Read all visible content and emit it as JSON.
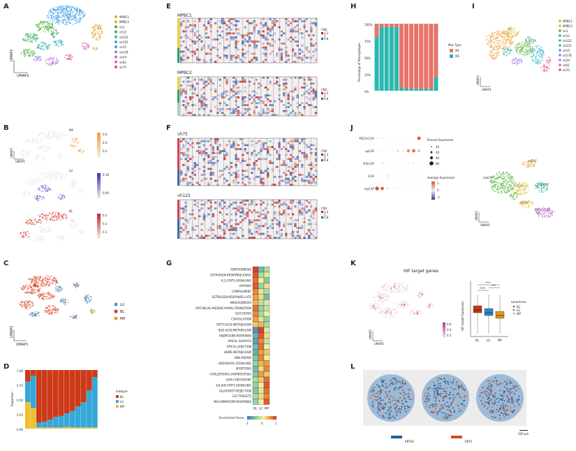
{
  "panels": {
    "A": "A",
    "B": "B",
    "C": "C",
    "D": "D",
    "E": "E",
    "F": "F",
    "G": "G",
    "H": "H",
    "I": "I",
    "J": "J",
    "K": "K",
    "L": "L"
  },
  "umap": {
    "x": "UMAP1",
    "y": "UMAP2"
  },
  "legend_A": [
    "MPBC1",
    "MPBC2",
    "vh1",
    "vh12",
    "vh122",
    "vh125",
    "vh15",
    "vh178",
    "vh24",
    "vh61",
    "vh75"
  ],
  "colors_A": [
    "#e8a23a",
    "#d4b43a",
    "#4cae2f",
    "#3fa867",
    "#3fb6a0",
    "#2fb0c8",
    "#3f9ee6",
    "#8c7de8",
    "#c06bd9",
    "#e05aa8",
    "#e04d6a"
  ],
  "panel_B": {
    "titles": [
      "MP",
      "LU",
      "BL"
    ],
    "scale_MP": [
      "0.6",
      "0.4",
      "0.2"
    ],
    "scale_LU": [
      "0.16",
      "0.04"
    ],
    "scale_BL": [
      "0.3",
      "0.2",
      "0.1"
    ]
  },
  "legend_C": [
    {
      "label": "LU",
      "color": "#3fa6d8"
    },
    {
      "label": "BL",
      "color": "#d8402a"
    },
    {
      "label": "MP",
      "color": "#f0a020"
    }
  ],
  "panel_D": {
    "ylabel": "Proportion",
    "legend_title": "Subtype",
    "legend": [
      "BL",
      "LU",
      "MP"
    ],
    "yticks": [
      "1.00",
      "0.75",
      "0.50",
      "0.25",
      "0.00"
    ]
  },
  "panel_E": {
    "titles": [
      "MPBC1",
      "MPBC2"
    ],
    "cnv_label": "CNV",
    "cnv_ticks": [
      "1.2",
      "1",
      "0.8"
    ]
  },
  "panel_F": {
    "titles": [
      "vh75",
      "vh125"
    ],
    "cnv_label": "CNV",
    "cnv_ticks": [
      "1.2",
      "1",
      "0.8"
    ]
  },
  "panel_G": {
    "pathways": [
      "ADIPOGENESIS",
      "ESTROGEN-RESPONSE-EARLY",
      "IL2-STAT5-SIGNALING",
      "HYPOXIA",
      "COMPLEMENT",
      "ESTROGEN-RESPONSE-LATE",
      "ANGIOGENESIS",
      "EPITHELIAL-MESENCHYMAL-TRANSITION",
      "GLYCOLYSIS",
      "COAGULATION",
      "FATTY-ACID-METABOLISM",
      "BILE-ACID-METABOLISM",
      "ANDROGEN-RESPONSE",
      "APICAL-SURFACE",
      "APICAL-JUNCTION",
      "HEME-METABOLISM",
      "DNA-REPAIR",
      "HEDGEHOG-SIGNALING",
      "APOPTOSIS",
      "CHOLESTEROL-HOMEOSTASIS",
      "G2M-CHECKPOINT",
      "IL6-JAK-STAT3-SIGNALING",
      "ALLOGRAFT-REJECTION",
      "E2F-TARGETS",
      "INFLAMMATORY-RESPONSE"
    ],
    "columns": [
      "BL",
      "LU",
      "MP"
    ],
    "scale_title": "Enrichment Score",
    "scale_ticks": [
      "-1",
      "0",
      "1"
    ]
  },
  "panel_H": {
    "ylabel": "Percentage of Macrophages",
    "yticks": [
      "100%",
      "75%",
      "50%",
      "25%",
      "0%"
    ],
    "legend_title": "Mac Type",
    "legend": [
      {
        "label": "M1",
        "color": "#e8736a"
      },
      {
        "label": "M2",
        "color": "#2bb8b0"
      }
    ],
    "m2": [
      0.8,
      0.95,
      0.95,
      0.95,
      0.95,
      0.05,
      0.03,
      0.03,
      0.03,
      0.03,
      0.03,
      0.03,
      0.2
    ]
  },
  "panel_J": {
    "rows": [
      "PSCA+CAF",
      "apCAF",
      "IFN-CAF",
      "iCAF",
      "myCAF"
    ],
    "size_title": "Percent Expressed",
    "size_ticks": [
      "20",
      "40",
      "60",
      "80"
    ],
    "color_title": "Average Expression",
    "color_ticks": [
      "1",
      "0",
      "-1"
    ]
  },
  "panel_I2_labels": [
    "apCAF",
    "myCAF",
    "iCAF",
    "IFN-CAF",
    "apCAF",
    "PSCA+CAF"
  ],
  "panel_K": {
    "title": "HIF target genes",
    "scale_ticks": [
      "0.6",
      "0.4",
      "0.2"
    ],
    "ylabel": "HIF target Expression",
    "legend_title": "tumortress",
    "legend": [
      "BL",
      "LU",
      "MP"
    ],
    "xticks": [
      "BL",
      "LU",
      "MP"
    ],
    "sig": [
      "****",
      "****",
      "***"
    ]
  },
  "panel_L": {
    "legend": [
      {
        "label": "KRT20",
        "color": "#1f5f9a"
      },
      {
        "label": "KRT5",
        "color": "#d0501e"
      }
    ],
    "scale": "200 μm"
  }
}
